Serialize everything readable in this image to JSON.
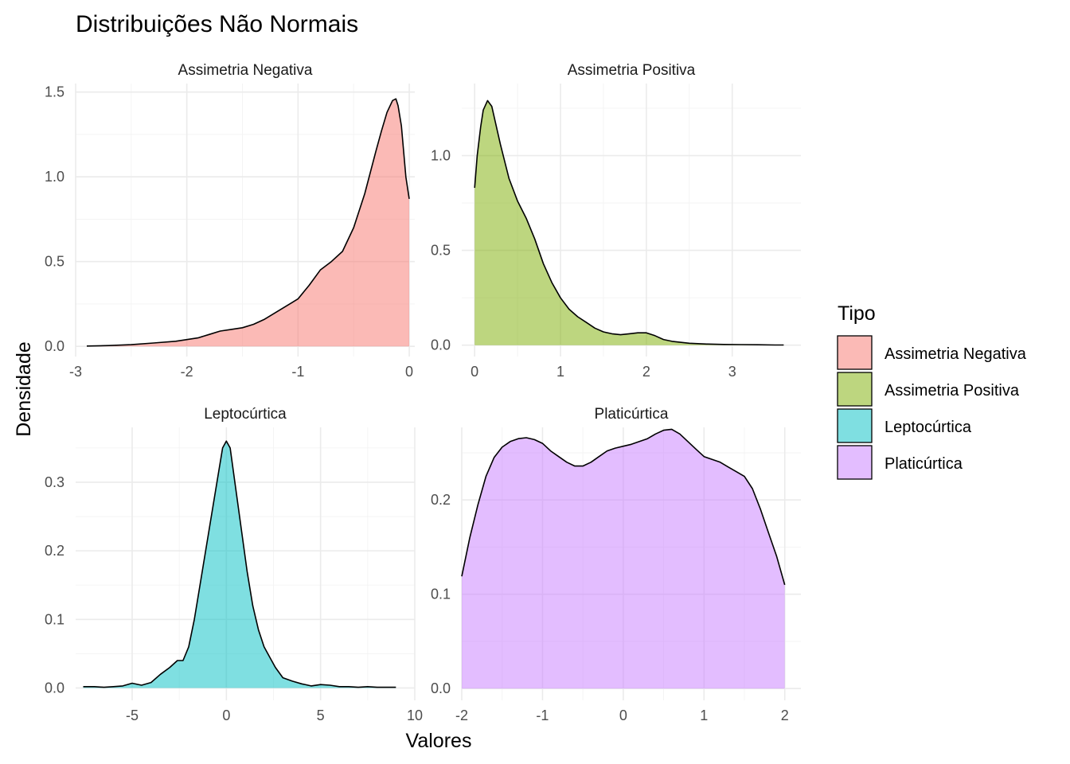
{
  "chart_data": {
    "type": "area",
    "title": "Distribuições Não Normais",
    "xlabel": "Valores",
    "ylabel": "Densidade",
    "grid": true,
    "legend": {
      "title": "Tipo",
      "placement": "right",
      "entries": [
        {
          "label": "Assimetria Negativa",
          "color": "#F8766D"
        },
        {
          "label": "Assimetria Positiva",
          "color": "#7CAE00"
        },
        {
          "label": "Leptocúrtica",
          "color": "#00BFC4"
        },
        {
          "label": "Platicúrtica",
          "color": "#C77CFF"
        }
      ]
    },
    "panels": [
      {
        "label": "Assimetria Negativa",
        "color": "#F8766D",
        "xlim": [
          -3.0,
          0.05
        ],
        "ylim": [
          -0.06,
          1.55
        ],
        "xticks": [
          -3,
          -2,
          -1,
          0
        ],
        "xtick_labels": [
          "-3",
          "-2",
          "-1",
          "0"
        ],
        "yticks": [
          0.0,
          0.5,
          1.0,
          1.5
        ],
        "ytick_labels": [
          "0.0",
          "0.5",
          "1.0",
          "1.5"
        ],
        "x": [
          -2.9,
          -2.7,
          -2.5,
          -2.3,
          -2.1,
          -1.9,
          -1.8,
          -1.7,
          -1.6,
          -1.5,
          -1.4,
          -1.3,
          -1.2,
          -1.1,
          -1.0,
          -0.9,
          -0.8,
          -0.7,
          -0.6,
          -0.5,
          -0.4,
          -0.3,
          -0.25,
          -0.2,
          -0.15,
          -0.12,
          -0.1,
          -0.07,
          -0.05,
          -0.03,
          0.0
        ],
        "y": [
          0.002,
          0.005,
          0.01,
          0.02,
          0.03,
          0.05,
          0.07,
          0.09,
          0.1,
          0.11,
          0.13,
          0.16,
          0.2,
          0.24,
          0.28,
          0.36,
          0.45,
          0.5,
          0.56,
          0.7,
          0.9,
          1.15,
          1.27,
          1.38,
          1.45,
          1.46,
          1.42,
          1.3,
          1.15,
          1.0,
          0.87
        ]
      },
      {
        "label": "Assimetria Positiva",
        "color": "#7CAE00",
        "xlim": [
          -0.15,
          3.8
        ],
        "ylim": [
          -0.06,
          1.38
        ],
        "xticks": [
          0,
          1,
          2,
          3
        ],
        "xtick_labels": [
          "0",
          "1",
          "2",
          "3"
        ],
        "yticks": [
          0.0,
          0.5,
          1.0
        ],
        "ytick_labels": [
          "0.0",
          "0.5",
          "1.0"
        ],
        "x": [
          0.0,
          0.03,
          0.07,
          0.1,
          0.15,
          0.2,
          0.3,
          0.4,
          0.5,
          0.6,
          0.7,
          0.8,
          0.9,
          1.0,
          1.1,
          1.2,
          1.3,
          1.4,
          1.5,
          1.6,
          1.7,
          1.8,
          1.9,
          2.0,
          2.1,
          2.2,
          2.3,
          2.5,
          2.7,
          2.9,
          3.1,
          3.3,
          3.5,
          3.6
        ],
        "y": [
          0.83,
          1.0,
          1.15,
          1.24,
          1.29,
          1.26,
          1.06,
          0.88,
          0.76,
          0.67,
          0.56,
          0.43,
          0.33,
          0.25,
          0.19,
          0.15,
          0.12,
          0.09,
          0.07,
          0.06,
          0.055,
          0.06,
          0.065,
          0.065,
          0.05,
          0.03,
          0.02,
          0.01,
          0.006,
          0.004,
          0.003,
          0.002,
          0.001,
          0.001
        ]
      },
      {
        "label": "Leptocúrtica",
        "color": "#00BFC4",
        "xlim": [
          -8.0,
          10.0
        ],
        "ylim": [
          -0.018,
          0.38
        ],
        "xticks": [
          -5,
          0,
          5,
          10
        ],
        "xtick_labels": [
          "-5",
          "0",
          "5",
          "10"
        ],
        "yticks": [
          0.0,
          0.1,
          0.2,
          0.3
        ],
        "ytick_labels": [
          "0.0",
          "0.1",
          "0.2",
          "0.3"
        ],
        "x": [
          -7.6,
          -7,
          -6.5,
          -6,
          -5.5,
          -5,
          -4.5,
          -4,
          -3.5,
          -3,
          -2.6,
          -2.3,
          -2,
          -1.7,
          -1.4,
          -1.1,
          -0.8,
          -0.5,
          -0.2,
          0,
          0.2,
          0.5,
          0.8,
          1.1,
          1.4,
          1.7,
          2,
          2.3,
          2.6,
          3,
          3.5,
          4,
          4.5,
          5,
          5.5,
          6,
          6.5,
          7,
          7.5,
          8,
          8.5,
          9
        ],
        "y": [
          0.002,
          0.002,
          0.001,
          0.002,
          0.003,
          0.007,
          0.004,
          0.008,
          0.02,
          0.03,
          0.04,
          0.04,
          0.06,
          0.1,
          0.15,
          0.2,
          0.25,
          0.3,
          0.35,
          0.36,
          0.35,
          0.29,
          0.23,
          0.17,
          0.12,
          0.085,
          0.06,
          0.045,
          0.03,
          0.015,
          0.01,
          0.006,
          0.003,
          0.005,
          0.004,
          0.002,
          0.002,
          0.001,
          0.002,
          0.001,
          0.001,
          0.001
        ]
      },
      {
        "label": "Platicúrtica",
        "color": "#C77CFF",
        "xlim": [
          -2.0,
          2.2
        ],
        "ylim": [
          -0.0125,
          0.277
        ],
        "xticks": [
          -2,
          -1,
          0,
          1,
          2
        ],
        "xtick_labels": [
          "-2",
          "-1",
          "0",
          "1",
          "2"
        ],
        "yticks": [
          0.0,
          0.1,
          0.2
        ],
        "ytick_labels": [
          "0.0",
          "0.1",
          "0.2"
        ],
        "x": [
          -2.0,
          -1.9,
          -1.8,
          -1.7,
          -1.6,
          -1.5,
          -1.4,
          -1.3,
          -1.2,
          -1.1,
          -1.0,
          -0.9,
          -0.8,
          -0.7,
          -0.6,
          -0.5,
          -0.4,
          -0.3,
          -0.2,
          -0.1,
          0.0,
          0.1,
          0.2,
          0.3,
          0.4,
          0.5,
          0.6,
          0.7,
          0.8,
          0.9,
          1.0,
          1.1,
          1.2,
          1.3,
          1.4,
          1.5,
          1.6,
          1.7,
          1.8,
          1.9,
          2.0
        ],
        "y": [
          0.119,
          0.16,
          0.195,
          0.225,
          0.245,
          0.256,
          0.262,
          0.265,
          0.266,
          0.264,
          0.26,
          0.252,
          0.246,
          0.24,
          0.236,
          0.236,
          0.24,
          0.246,
          0.252,
          0.255,
          0.257,
          0.259,
          0.262,
          0.265,
          0.27,
          0.274,
          0.275,
          0.27,
          0.262,
          0.254,
          0.246,
          0.243,
          0.24,
          0.235,
          0.23,
          0.225,
          0.212,
          0.19,
          0.165,
          0.14,
          0.11
        ]
      }
    ]
  }
}
